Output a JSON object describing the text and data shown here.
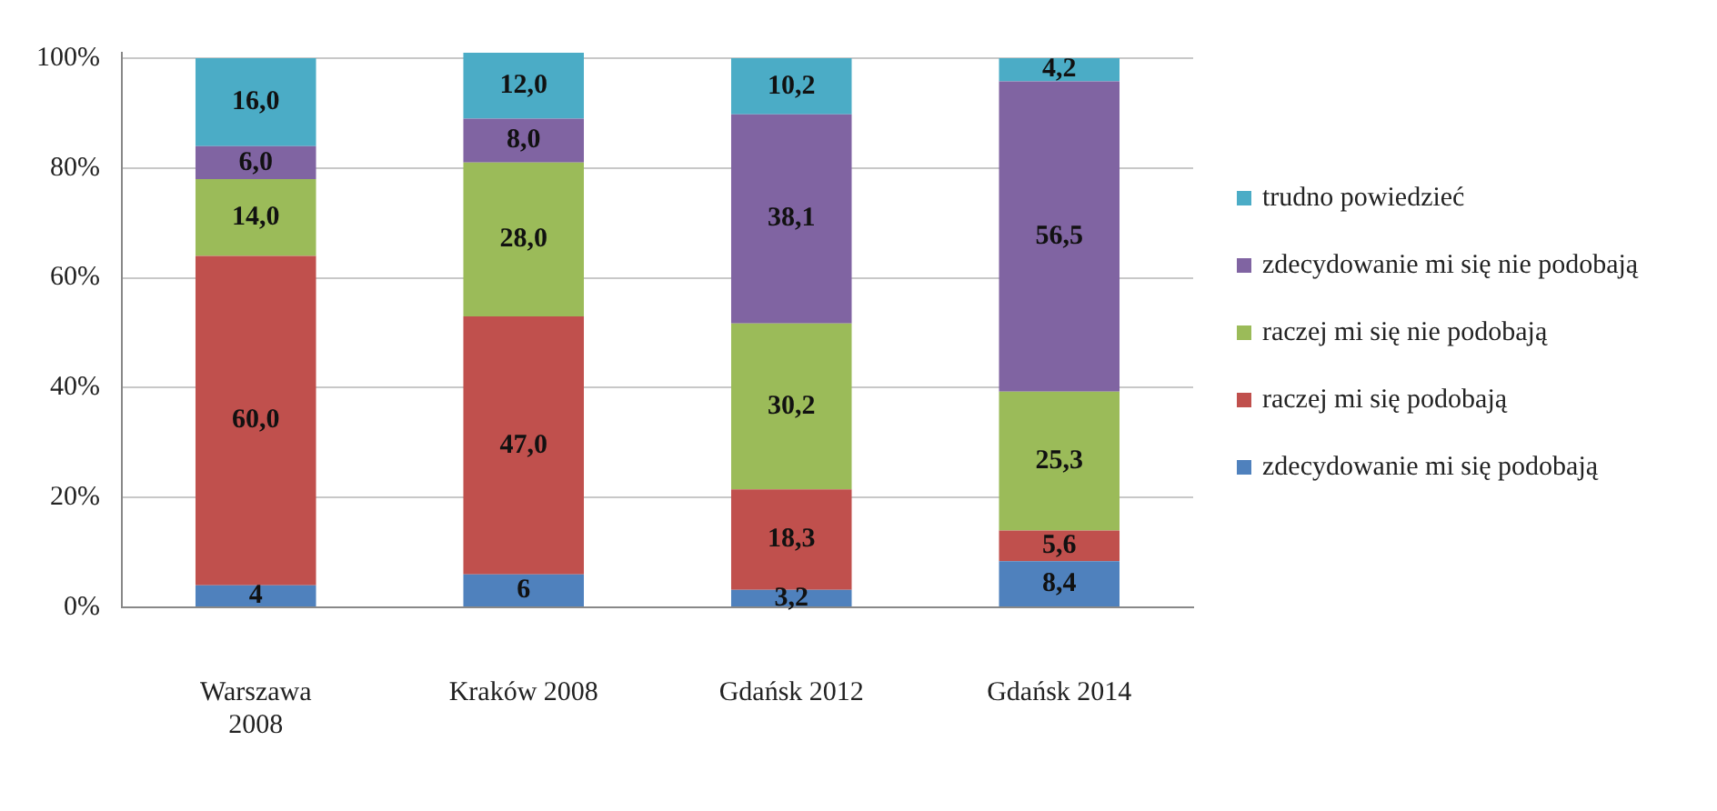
{
  "chart_data": {
    "type": "bar",
    "stacked": true,
    "categories": [
      "Warszawa 2008",
      "Kraków 2008",
      "Gdańsk 2012",
      "Gdańsk 2014"
    ],
    "series": [
      {
        "name": "zdecydowanie mi się podobają",
        "color": "#4f81bd",
        "values": [
          4,
          6,
          3.2,
          8.4
        ],
        "value_labels": [
          "4",
          "6",
          "3,2",
          "8,4"
        ]
      },
      {
        "name": "raczej mi się podobają",
        "color": "#c0504d",
        "values": [
          60,
          47,
          18.3,
          5.6
        ],
        "value_labels": [
          "60,0",
          "47,0",
          "18,3",
          "5,6"
        ]
      },
      {
        "name": "raczej mi się nie podobają",
        "color": "#9bbb59",
        "values": [
          14,
          28,
          30.2,
          25.3
        ],
        "value_labels": [
          "14,0",
          "28,0",
          "30,2",
          "25,3"
        ]
      },
      {
        "name": "zdecydowanie mi się nie podobają",
        "color": "#8064a2",
        "values": [
          6,
          8,
          38.1,
          56.5
        ],
        "value_labels": [
          "6,0",
          "8,0",
          "38,1",
          "56,5"
        ]
      },
      {
        "name": "trudno powiedzieć",
        "color": "#4bacc6",
        "values": [
          16,
          12,
          10.2,
          4.2
        ],
        "value_labels": [
          "16,0",
          "12,0",
          "10,2",
          "4,2"
        ]
      }
    ],
    "ylim": [
      0,
      101
    ],
    "yticks": [
      {
        "value": 0,
        "label": "0%"
      },
      {
        "value": 20,
        "label": "20%"
      },
      {
        "value": 40,
        "label": "40%"
      },
      {
        "value": 60,
        "label": "60%"
      },
      {
        "value": 80,
        "label": "80%"
      },
      {
        "value": 100,
        "label": "100%"
      }
    ],
    "grid": "y",
    "legend": "right"
  }
}
